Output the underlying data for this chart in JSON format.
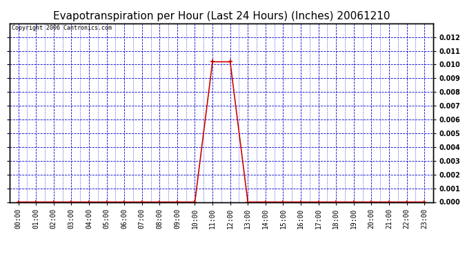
{
  "title": "Evapotranspiration per Hour (Last 24 Hours) (Inches) 20061210",
  "copyright_text": "Copyright 2006 Cantronics.com",
  "hours": [
    "00:00",
    "01:00",
    "02:00",
    "03:00",
    "04:00",
    "05:00",
    "06:00",
    "07:00",
    "08:00",
    "09:00",
    "10:00",
    "11:00",
    "12:00",
    "13:00",
    "14:00",
    "15:00",
    "16:00",
    "17:00",
    "18:00",
    "19:00",
    "20:00",
    "21:00",
    "22:00",
    "23:00"
  ],
  "values": [
    0.0,
    0.0,
    0.0,
    0.0,
    0.0,
    0.0,
    0.0,
    0.0,
    0.0,
    0.0,
    0.0,
    0.0102,
    0.0102,
    0.0,
    0.0,
    0.0,
    0.0,
    0.0,
    0.0,
    0.0,
    0.0,
    0.0,
    0.0,
    0.0
  ],
  "line_color": "#cc0000",
  "marker_color": "#cc0000",
  "background_color": "#ffffff",
  "plot_bg_color": "#ffffff",
  "grid_color": "#0000cc",
  "title_fontsize": 11,
  "copyright_fontsize": 6,
  "tick_labelsize": 7,
  "ylim": [
    0,
    0.013
  ],
  "yticks": [
    0.0,
    0.001,
    0.002,
    0.003,
    0.004,
    0.005,
    0.006,
    0.007,
    0.008,
    0.009,
    0.01,
    0.011,
    0.012
  ],
  "n_hours": 24,
  "sub_divisions": 2
}
